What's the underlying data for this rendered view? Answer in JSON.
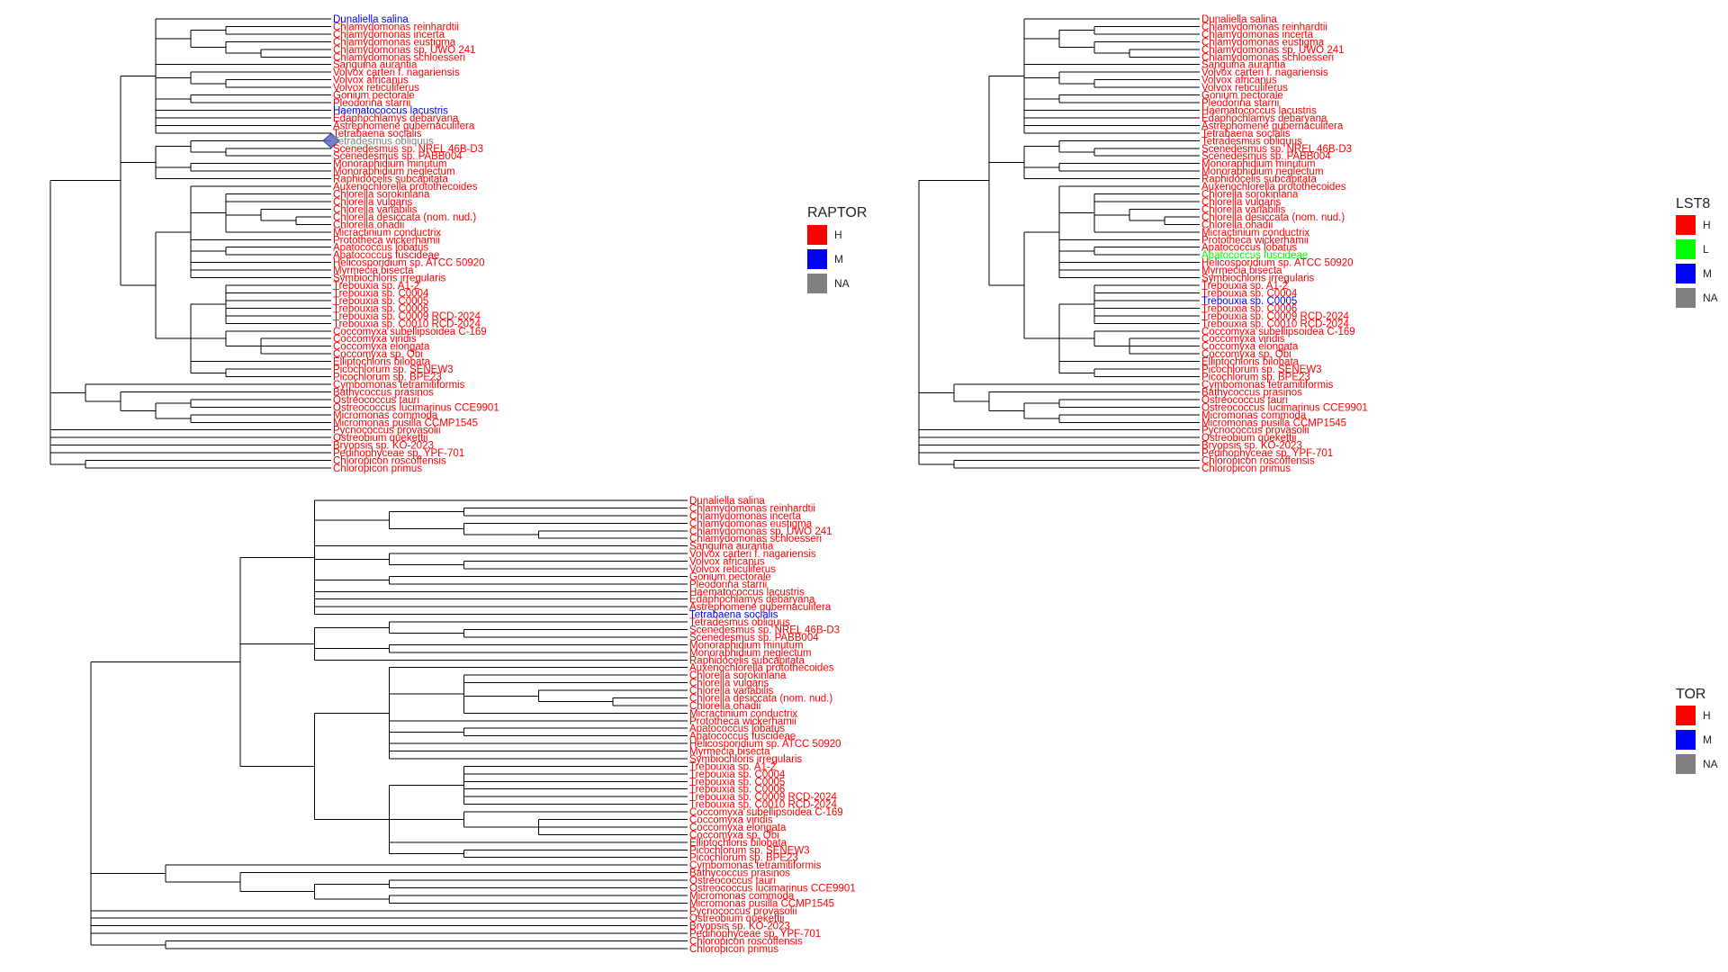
{
  "colors": {
    "H": "#ff0000",
    "M": "#0000ff",
    "L": "#00ff00",
    "NA": "#808080",
    "branch": "#000000"
  },
  "taxa": [
    "Dunaliella salina",
    "Chlamydomonas reinhardtii",
    "Chlamydomonas incerta",
    "Chlamydomonas eustigma",
    "Chlamydomonas sp. UWO 241",
    "Chlamydomonas schloesseri",
    "Sanguina aurantia",
    "Volvox carteri f. nagariensis",
    "Volvox africanus",
    "Volvox reticuliferus",
    "Gonium pectorale",
    "Pleodorina starrii",
    "Haematococcus lacustris",
    "Edaphochlamys debaryana",
    "Astrephomene gubernaculifera",
    "Tetrabaena socialis",
    "Tetradesmus obliquus",
    "Scenedesmus sp. NREL 46B-D3",
    "Scenedesmus sp. PABB004",
    "Monoraphidium minutum",
    "Monoraphidium neglectum",
    "Raphidocelis subcapitata",
    "Auxenochlorella protothecoides",
    "Chlorella sorokiniana",
    "Chlorella vulgaris",
    "Chlorella variabilis",
    "Chlorella desiccata (nom. nud.)",
    "Chlorella ohadii",
    "Micractinium conductrix",
    "Prototheca wickerhamii",
    "Apatococcus lobatus",
    "Apatococcus fuscideae",
    "Helicosporidium sp. ATCC 50920",
    "Myrmecia bisecta",
    "Symbiochloris irregularis",
    "Trebouxia sp. A1-2",
    "Trebouxia sp. C0004",
    "Trebouxia sp. C0005",
    "Trebouxia sp. C0006",
    "Trebouxia sp. C0009 RCD-2024",
    "Trebouxia sp. C0010 RCD-2024",
    "Coccomyxa subellipsoidea C-169",
    "Coccomyxa viridis",
    "Coccomyxa elongata",
    "Coccomyxa sp. Obi",
    "Elliptochloris bilobata",
    "Picochlorum sp. SENEW3",
    "Picochlorum sp. BPE23",
    "Cymbomonas tetramitiformis",
    "Bathycoccus prasinos",
    "Ostreococcus tauri",
    "Ostreococcus lucimarinus CCE9901",
    "Micromonas commoda",
    "Micromonas pusilla CCMP1545",
    "Pycnococcus provasolii",
    "Ostreobium quekettii",
    "Bryopsis sp. KO-2023",
    "Pedinophyceae sp. YPF-701",
    "Chloropicon roscoffensis",
    "Chloropicon primus"
  ],
  "panels": [
    {
      "id": "raptor",
      "legend": {
        "title": "RAPTOR",
        "items": [
          "H",
          "M",
          "NA"
        ]
      },
      "exceptions": {
        "0": "M",
        "12": "M",
        "16": "NA"
      },
      "highlight_tip": 16
    },
    {
      "id": "lst8",
      "legend": {
        "title": "LST8",
        "items": [
          "H",
          "L",
          "M",
          "NA"
        ]
      },
      "exceptions": {
        "31": "L",
        "37": "M"
      }
    },
    {
      "id": "tor",
      "legend": {
        "title": "TOR",
        "items": [
          "H",
          "M",
          "NA"
        ]
      },
      "exceptions": {
        "15": "M"
      }
    }
  ]
}
